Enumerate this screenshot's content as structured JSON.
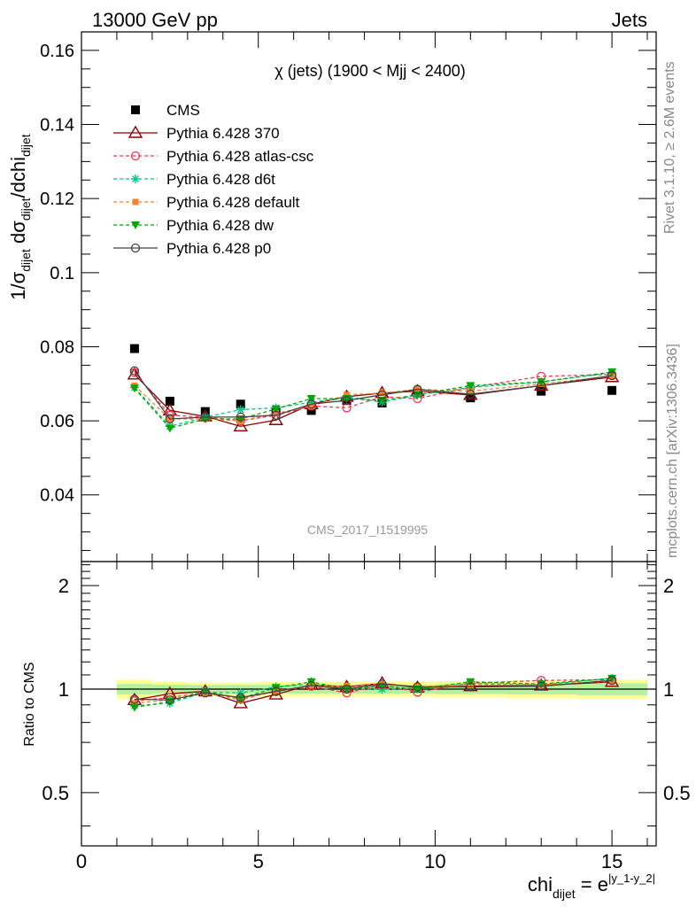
{
  "header": {
    "left": "13000 GeV pp",
    "right": "Jets"
  },
  "side_labels": {
    "rivet": "Rivet 3.1.10, ≥ 2.6M events",
    "mcplots": "mcplots.cern.ch [arXiv:1306.3436]"
  },
  "watermark": "CMS_2017_I1519995",
  "colors": {
    "CMS": "#000000",
    "370": "#8b0000",
    "atlas-csc": "#ff3355",
    "d6t": "#00c98a",
    "default": "#ff7f2a",
    "dw": "#00a800",
    "p0": "#444444",
    "band_outer": "#ffff99",
    "band_inner": "#b6f0a2"
  },
  "chart_data": [
    {
      "type": "line",
      "panel": "main",
      "title": "χ (jets) (1900 < Mjj < 2400)",
      "ylabel": "1/σdijet dσdijet/dchidijet",
      "ylim": [
        0.022,
        0.165
      ],
      "yticks": [
        0.04,
        0.06,
        0.08,
        0.1,
        0.12,
        0.14,
        0.16
      ],
      "ytick_labels": [
        "0.04",
        "0.06",
        "0.08",
        "0.1",
        "0.12",
        "0.14",
        "0.16"
      ],
      "legend_position": "top-left",
      "x": [
        1.5,
        2.5,
        3.5,
        4.5,
        5.5,
        6.5,
        7.5,
        8.5,
        9.5,
        11,
        13,
        15
      ],
      "series": [
        {
          "name": "CMS",
          "key": "CMS",
          "marker": "square",
          "dashed": false,
          "values": [
            0.0795,
            0.0653,
            0.0625,
            0.0645,
            0.0625,
            0.0628,
            0.0655,
            0.0648,
            0.0675,
            0.0662,
            0.068,
            0.0682
          ]
        },
        {
          "name": "Pythia 6.428 370",
          "key": "370",
          "marker": "triangle-open",
          "dashed": false,
          "values": [
            0.0725,
            0.0628,
            0.0612,
            0.0585,
            0.0602,
            0.0645,
            0.0665,
            0.0675,
            0.068,
            0.067,
            0.0695,
            0.0718
          ]
        },
        {
          "name": "Pythia 6.428 atlas-csc",
          "key": "atlas-csc",
          "marker": "circle-open",
          "dashed": true,
          "values": [
            0.073,
            0.0615,
            0.061,
            0.06,
            0.0615,
            0.064,
            0.0635,
            0.0665,
            0.066,
            0.069,
            0.072,
            0.0725
          ]
        },
        {
          "name": "Pythia 6.428 d6t",
          "key": "d6t",
          "marker": "star",
          "dashed": true,
          "values": [
            0.069,
            0.0585,
            0.061,
            0.063,
            0.0635,
            0.065,
            0.0665,
            0.065,
            0.067,
            0.069,
            0.0705,
            0.073
          ]
        },
        {
          "name": "Pythia 6.428 default",
          "key": "default",
          "marker": "square-small",
          "dashed": true,
          "values": [
            0.0695,
            0.0605,
            0.0605,
            0.06,
            0.062,
            0.064,
            0.067,
            0.0675,
            0.0685,
            0.068,
            0.07,
            0.072
          ]
        },
        {
          "name": "Pythia 6.428 dw",
          "key": "dw",
          "marker": "triangle-down",
          "dashed": true,
          "values": [
            0.0688,
            0.058,
            0.0605,
            0.0605,
            0.0632,
            0.066,
            0.066,
            0.0655,
            0.067,
            0.0695,
            0.0705,
            0.0732
          ]
        },
        {
          "name": "Pythia 6.428 p0",
          "key": "p0",
          "marker": "circle-open",
          "dashed": false,
          "values": [
            0.0735,
            0.0605,
            0.061,
            0.061,
            0.0615,
            0.0645,
            0.0655,
            0.067,
            0.0685,
            0.0672,
            0.0695,
            0.0722
          ]
        }
      ]
    },
    {
      "type": "line",
      "panel": "ratio",
      "ylabel": "Ratio to CMS",
      "ylim": [
        0.35,
        2.35
      ],
      "yticks": [
        0.5,
        1,
        2
      ],
      "ytick_labels": [
        "0.5",
        "1",
        "2"
      ],
      "xlabel": "chidijet = e|y_1-y_2|",
      "xlim": [
        0,
        16.25
      ],
      "xticks": [
        0,
        5,
        10,
        15
      ],
      "xtick_labels": [
        "0",
        "5",
        "10",
        "15"
      ],
      "x": [
        1.5,
        2.5,
        3.5,
        4.5,
        5.5,
        6.5,
        7.5,
        8.5,
        9.5,
        11,
        13,
        15
      ],
      "band": {
        "x_edges": [
          1,
          2,
          3,
          4,
          5,
          6,
          7,
          8,
          9,
          10,
          12,
          14,
          16
        ],
        "outer": [
          0.065,
          0.05,
          0.045,
          0.045,
          0.05,
          0.05,
          0.05,
          0.05,
          0.05,
          0.055,
          0.06,
          0.065
        ],
        "inner": [
          0.035,
          0.03,
          0.028,
          0.028,
          0.03,
          0.03,
          0.03,
          0.03,
          0.03,
          0.033,
          0.035,
          0.04
        ]
      },
      "series": [
        {
          "key": "370",
          "marker": "triangle-open",
          "dashed": false,
          "values": [
            0.93,
            0.97,
            0.985,
            0.91,
            0.965,
            1.03,
            1.015,
            1.04,
            1.01,
            1.02,
            1.025,
            1.05
          ]
        },
        {
          "key": "atlas-csc",
          "marker": "circle-open",
          "dashed": true,
          "values": [
            0.925,
            0.945,
            0.978,
            0.94,
            0.985,
            1.02,
            0.975,
            1.03,
            0.98,
            1.04,
            1.06,
            1.065
          ]
        },
        {
          "key": "d6t",
          "marker": "star",
          "dashed": true,
          "values": [
            0.895,
            0.91,
            0.98,
            0.975,
            1.015,
            1.035,
            1.005,
            1.0,
            1.005,
            1.04,
            1.03,
            1.075
          ]
        },
        {
          "key": "default",
          "marker": "square-small",
          "dashed": true,
          "values": [
            0.91,
            0.93,
            0.975,
            0.93,
            0.99,
            1.02,
            1.02,
            1.04,
            1.015,
            1.03,
            1.03,
            1.055
          ]
        },
        {
          "key": "dw",
          "marker": "triangle-down",
          "dashed": true,
          "values": [
            0.885,
            0.92,
            0.985,
            0.94,
            1.01,
            1.05,
            1.0,
            1.02,
            1.0,
            1.05,
            1.035,
            1.075
          ]
        },
        {
          "key": "p0",
          "marker": "circle-open",
          "dashed": false,
          "values": [
            0.935,
            0.93,
            0.975,
            0.945,
            0.985,
            1.025,
            1.0,
            1.035,
            1.015,
            1.015,
            1.02,
            1.06
          ]
        }
      ]
    }
  ]
}
